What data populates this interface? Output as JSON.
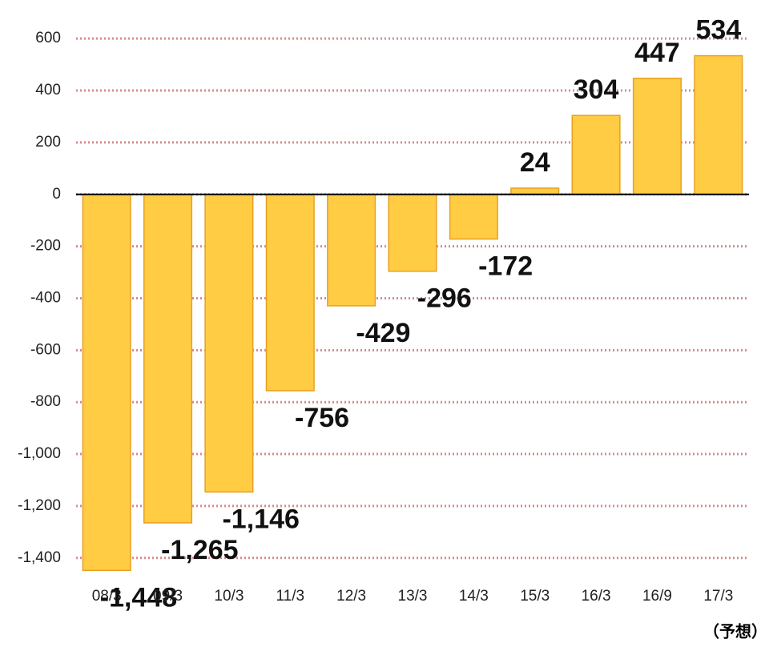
{
  "chart_data": {
    "type": "bar",
    "categories": [
      "08/3",
      "09/3",
      "10/3",
      "11/3",
      "12/3",
      "13/3",
      "14/3",
      "15/3",
      "16/3",
      "16/9",
      "17/3"
    ],
    "values": [
      -1448,
      -1265,
      -1146,
      -756,
      -429,
      -296,
      -172,
      24,
      304,
      447,
      534
    ],
    "value_labels": [
      "-1,448",
      "-1,265",
      "-1,146",
      "-756",
      "-429",
      "-296",
      "-172",
      "24",
      "304",
      "447",
      "534"
    ],
    "color": "#ffcc44",
    "ylim": [
      -1450,
      656
    ],
    "yticks": [
      {
        "value": -1400,
        "label": "-1,400"
      },
      {
        "value": -1200,
        "label": "-1,200"
      },
      {
        "value": -1000,
        "label": "-1,000"
      },
      -800,
      -600,
      -400,
      -200,
      0,
      200,
      400,
      600
    ],
    "grid": true,
    "annotation": "（予想）"
  }
}
